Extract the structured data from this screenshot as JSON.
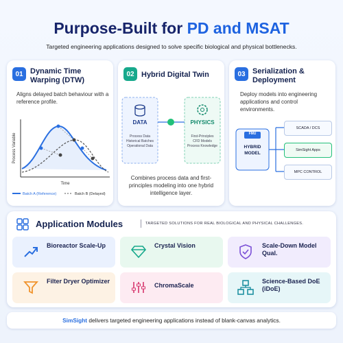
{
  "header": {
    "title_lead": "Purpose-Built for",
    "title_highlight": "PD and MSAT",
    "subtitle": "Targeted engineering applications designed to solve specific biological and physical bottlenecks."
  },
  "cards": [
    {
      "number": "01",
      "title": "Dynamic Time Warping (DTW)",
      "description": "Aligns delayed batch behaviour with a reference profile.",
      "y_axis": "Process Variable",
      "x_axis": "Time",
      "legend": [
        "Batch A (Reference)",
        "Batch B (Delayed)"
      ]
    },
    {
      "number": "02",
      "title": "Hybrid Digital Twin",
      "data_box": {
        "label": "DATA",
        "items": [
          "Process Data",
          "Historical Batches",
          "Operational Data"
        ]
      },
      "physics_box": {
        "label": "PHYSICS",
        "items": [
          "First-Principles",
          "CFD Models",
          "Process Knowledge"
        ]
      },
      "description": "Combines process data and first-principles modeling into one hybrid intelligence layer."
    },
    {
      "number": "03",
      "title": "Serialization & Deployment",
      "description": "Deploy models into engineering applications and control environments.",
      "model_tag": "FMU",
      "model_label": "HYBRID MODEL",
      "targets": [
        "SCADA / DCS",
        "SimSight Apps",
        "MPC CONTROL"
      ]
    }
  ],
  "modules": {
    "title": "Application Modules",
    "tagline": "TARGETED SOLUTIONS FOR REAL BIOLOGICAL AND PHYSICAL CHALLENGES.",
    "items": [
      "Bioreactor Scale-Up",
      "Crystal Vision",
      "Scale-Down Model Qual.",
      "Filter Dryer Optimizer",
      "ChromaScale",
      "Science-Based DoE (iDoE)"
    ]
  },
  "footer": {
    "brand": "SimSight",
    "text": "delivers targeted engineering applications instead of blank-canvas analytics."
  }
}
